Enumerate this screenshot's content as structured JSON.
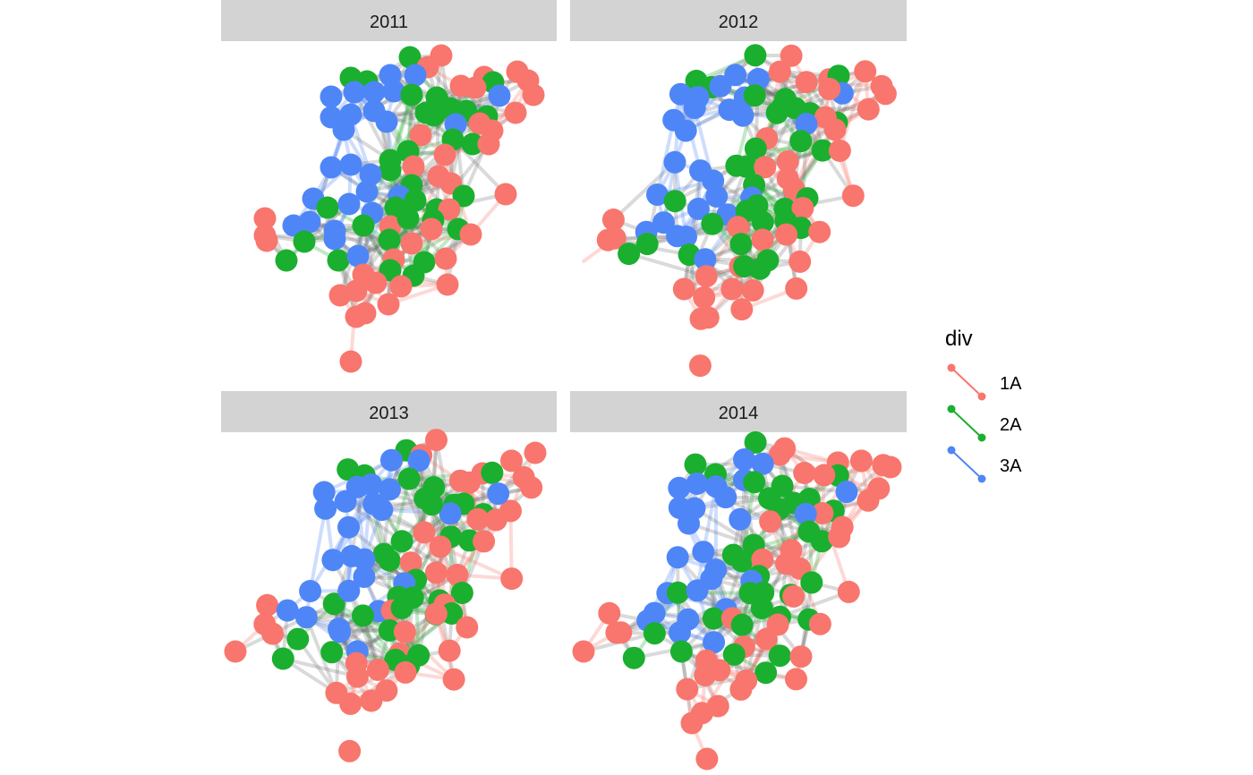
{
  "colors": {
    "1A": "#F8766D",
    "2A": "#1BAF2F",
    "3A": "#4F86F7",
    "strip_bg": "#D3D3D3",
    "cross_edge": "#555555"
  },
  "panels": [
    {
      "label": "2011"
    },
    {
      "label": "2012"
    },
    {
      "label": "2013"
    },
    {
      "label": "2014"
    }
  ],
  "legend": {
    "title": "div",
    "items": [
      {
        "label": "1A",
        "color_key": "1A"
      },
      {
        "label": "2A",
        "color_key": "2A"
      },
      {
        "label": "3A",
        "color_key": "3A"
      }
    ]
  }
}
